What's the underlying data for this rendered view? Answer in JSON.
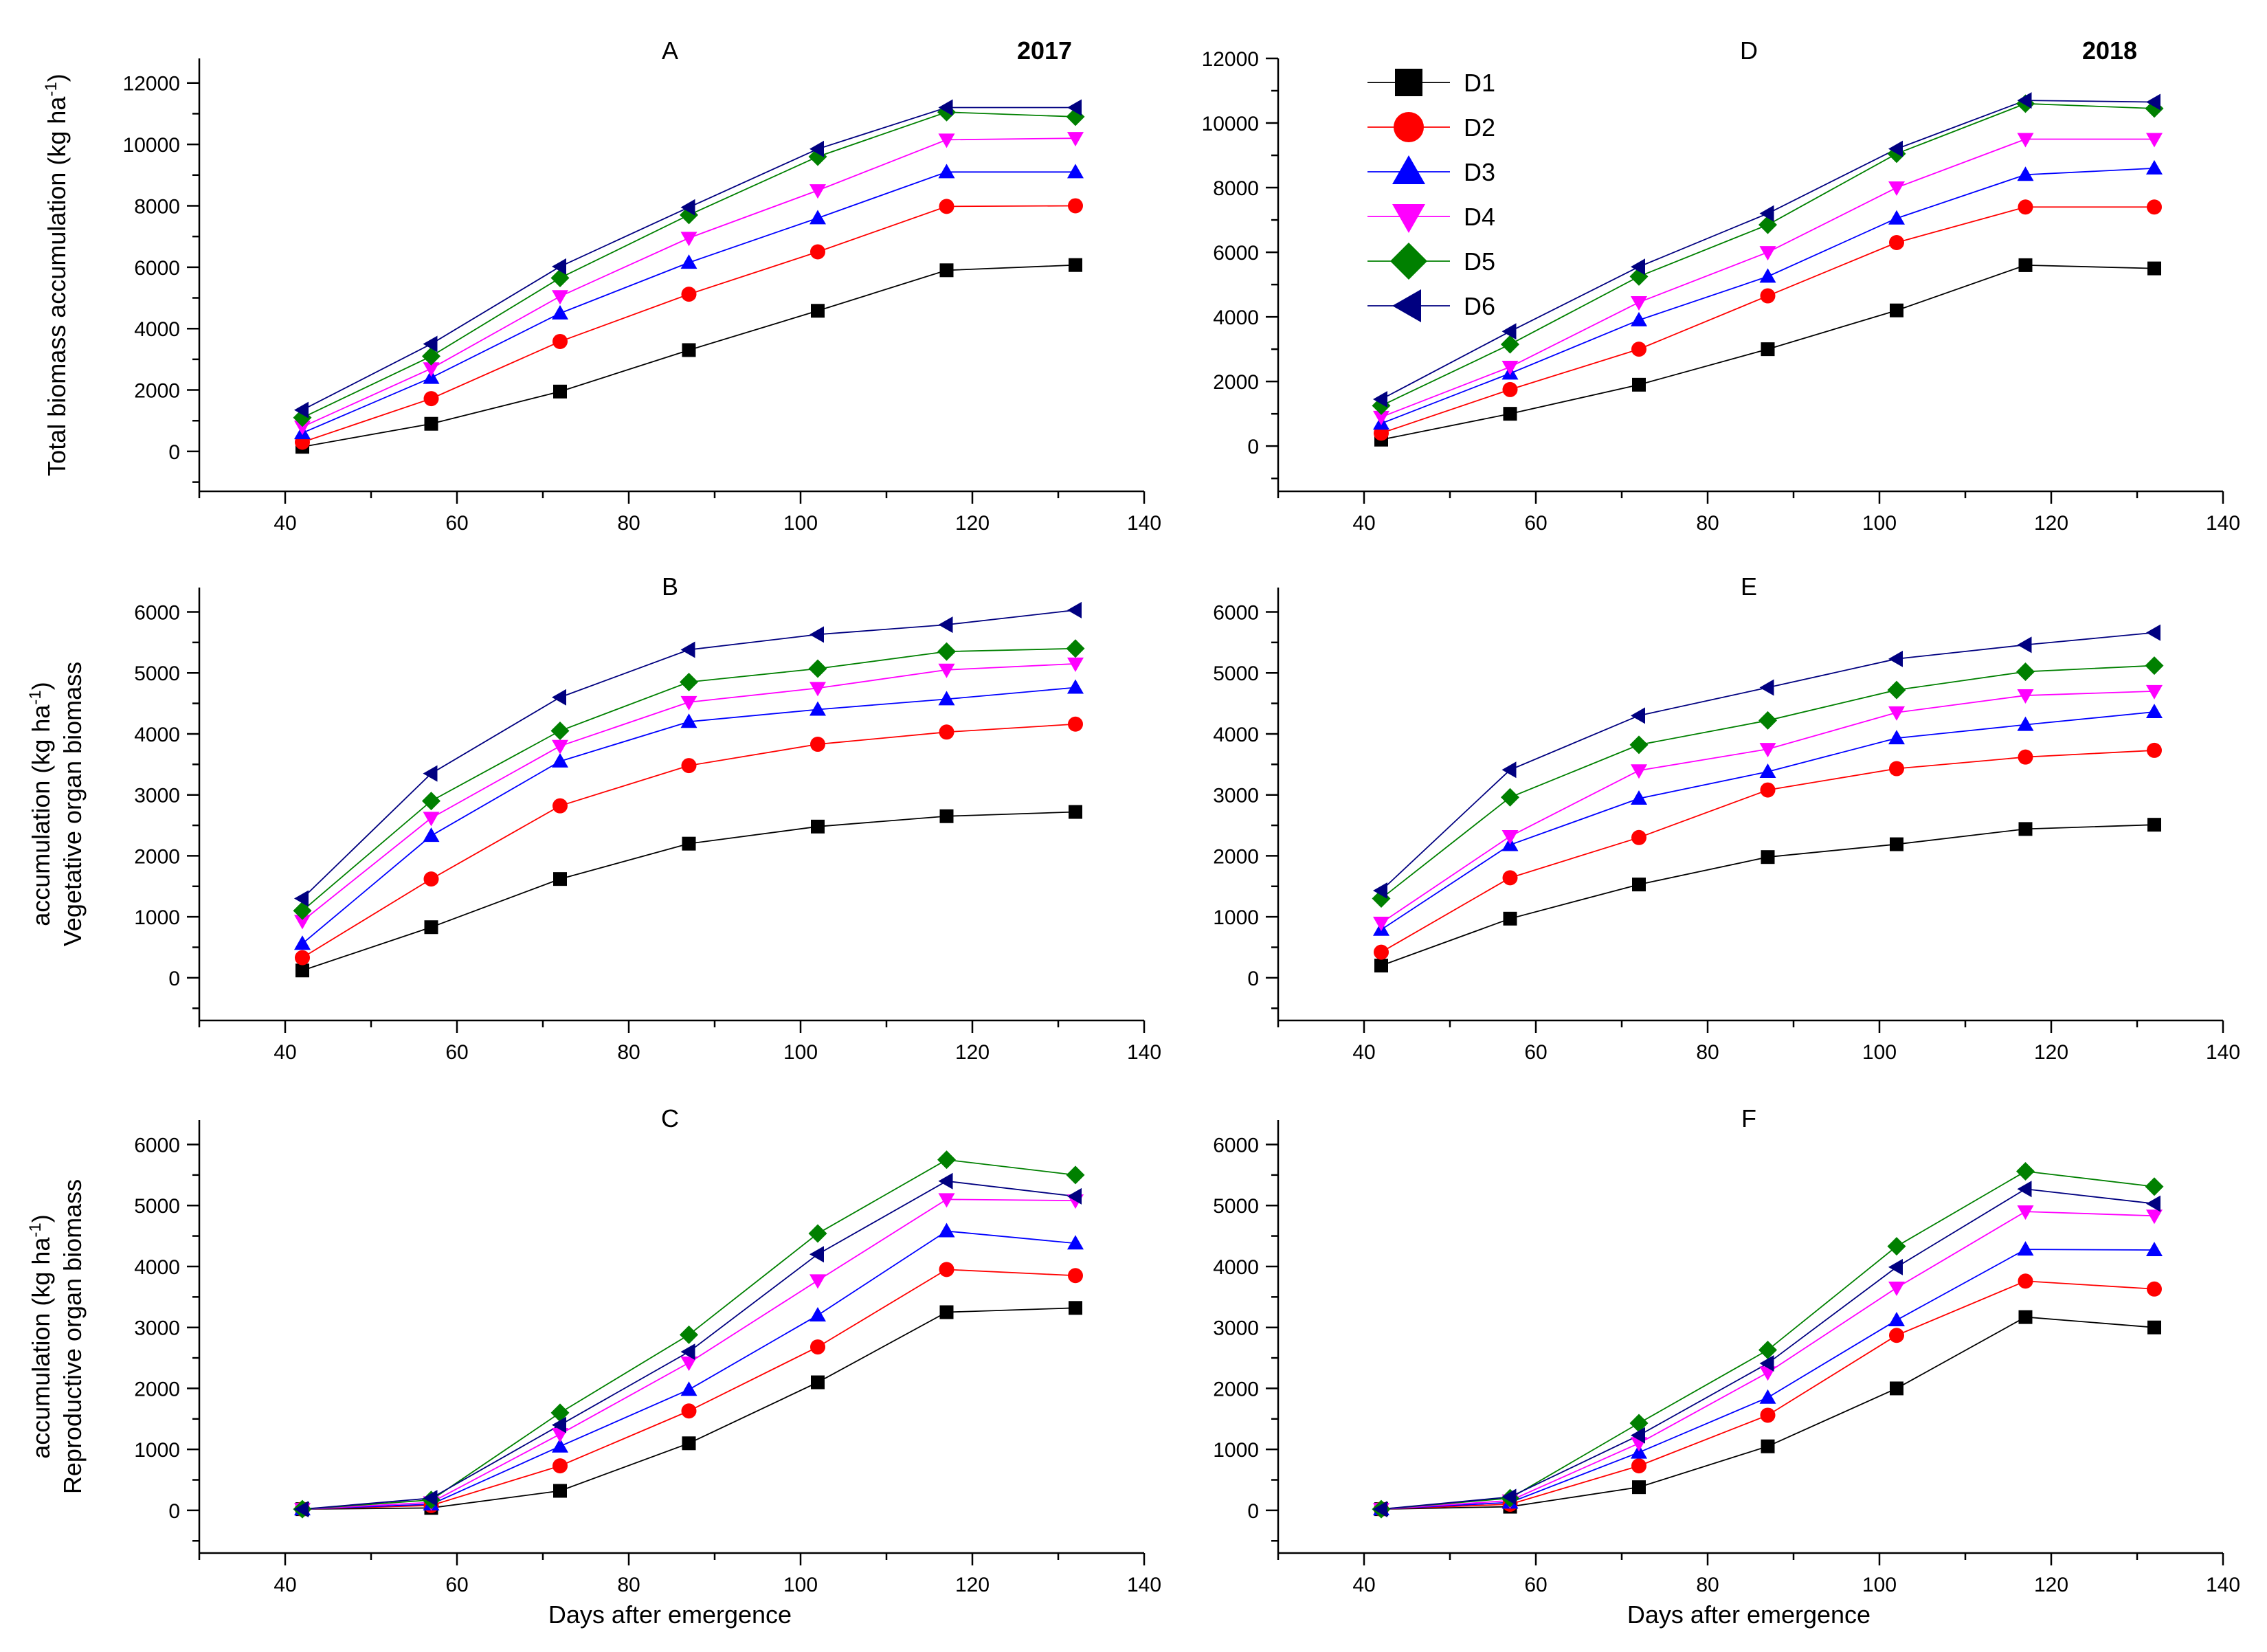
{
  "series_meta": [
    {
      "name": "D1",
      "color": "#000000",
      "marker": "square"
    },
    {
      "name": "D2",
      "color": "#ff0000",
      "marker": "circle"
    },
    {
      "name": "D3",
      "color": "#0000ff",
      "marker": "triangle-up"
    },
    {
      "name": "D4",
      "color": "#ff00ff",
      "marker": "triangle-down"
    },
    {
      "name": "D5",
      "color": "#008000",
      "marker": "diamond"
    },
    {
      "name": "D6",
      "color": "#000080",
      "marker": "triangle-left"
    }
  ],
  "shared_xlabel": "Days after emergence",
  "chart_data": [
    {
      "id": "A",
      "type": "line",
      "title": "A",
      "year": "2017",
      "ylabel_lines": [
        "Total biomass accumulation (kg ha"
      ],
      "ylabel_sup": "-1",
      "ylabel_close": ")",
      "x": [
        42,
        57,
        72,
        87,
        102,
        117,
        132
      ],
      "xlim": [
        30,
        140
      ],
      "xticks": [
        40,
        60,
        80,
        100,
        120,
        140
      ],
      "ylim": [
        -1300,
        12800
      ],
      "yticks": [
        0,
        2000,
        4000,
        6000,
        8000,
        10000,
        12000
      ],
      "series": [
        {
          "name": "D1",
          "values": [
            150,
            900,
            1950,
            3300,
            4580,
            5900,
            6070
          ]
        },
        {
          "name": "D2",
          "values": [
            300,
            1720,
            3580,
            5120,
            6500,
            7980,
            8000
          ]
        },
        {
          "name": "D3",
          "values": [
            600,
            2400,
            4500,
            6150,
            7600,
            9100,
            9100
          ]
        },
        {
          "name": "D4",
          "values": [
            800,
            2700,
            5050,
            6950,
            8500,
            10150,
            10200
          ]
        },
        {
          "name": "D5",
          "values": [
            1100,
            3100,
            5650,
            7700,
            9600,
            11050,
            10900
          ]
        },
        {
          "name": "D6",
          "values": [
            1350,
            3500,
            6020,
            7950,
            9850,
            11200,
            11200
          ]
        }
      ]
    },
    {
      "id": "D",
      "type": "line",
      "title": "D",
      "year": "2018",
      "x": [
        42,
        57,
        72,
        87,
        102,
        117,
        132
      ],
      "xlim": [
        30,
        140
      ],
      "xticks": [
        40,
        60,
        80,
        100,
        120,
        140
      ],
      "ylim": [
        -1400,
        12000
      ],
      "yticks": [
        0,
        2000,
        4000,
        6000,
        8000,
        10000,
        12000
      ],
      "series": [
        {
          "name": "D1",
          "values": [
            200,
            1000,
            1900,
            3000,
            4200,
            5600,
            5500
          ]
        },
        {
          "name": "D2",
          "values": [
            400,
            1750,
            3000,
            4650,
            6300,
            7400,
            7400
          ]
        },
        {
          "name": "D3",
          "values": [
            700,
            2250,
            3900,
            5250,
            7050,
            8400,
            8600
          ]
        },
        {
          "name": "D4",
          "values": [
            900,
            2450,
            4450,
            6000,
            8000,
            9500,
            9500
          ]
        },
        {
          "name": "D5",
          "values": [
            1250,
            3150,
            5250,
            6850,
            9050,
            10600,
            10450
          ]
        },
        {
          "name": "D6",
          "values": [
            1450,
            3550,
            5550,
            7200,
            9200,
            10700,
            10650
          ]
        }
      ]
    },
    {
      "id": "B",
      "type": "line",
      "title": "B",
      "ylabel_lines": [
        "Vegetative organ biomass",
        "accumulation (kg ha"
      ],
      "ylabel_sup": "-1",
      "ylabel_close": ")",
      "x": [
        42,
        57,
        72,
        87,
        102,
        117,
        132
      ],
      "xlim": [
        30,
        140
      ],
      "xticks": [
        40,
        60,
        80,
        100,
        120,
        140
      ],
      "ylim": [
        -700,
        6400
      ],
      "yticks": [
        0,
        1000,
        2000,
        3000,
        4000,
        5000,
        6000
      ],
      "series": [
        {
          "name": "D1",
          "values": [
            120,
            830,
            1620,
            2200,
            2480,
            2650,
            2720
          ]
        },
        {
          "name": "D2",
          "values": [
            330,
            1620,
            2820,
            3480,
            3830,
            4030,
            4160
          ]
        },
        {
          "name": "D3",
          "values": [
            560,
            2330,
            3550,
            4200,
            4400,
            4570,
            4760
          ]
        },
        {
          "name": "D4",
          "values": [
            930,
            2620,
            3800,
            4520,
            4750,
            5050,
            5150
          ]
        },
        {
          "name": "D5",
          "values": [
            1100,
            2900,
            4050,
            4850,
            5070,
            5350,
            5400
          ]
        },
        {
          "name": "D6",
          "values": [
            1300,
            3350,
            4600,
            5380,
            5630,
            5790,
            6030
          ]
        }
      ]
    },
    {
      "id": "E",
      "type": "line",
      "title": "E",
      "x": [
        42,
        57,
        72,
        87,
        102,
        117,
        132
      ],
      "xlim": [
        30,
        140
      ],
      "xticks": [
        40,
        60,
        80,
        100,
        120,
        140
      ],
      "ylim": [
        -700,
        6400
      ],
      "yticks": [
        0,
        1000,
        2000,
        3000,
        4000,
        5000,
        6000
      ],
      "series": [
        {
          "name": "D1",
          "values": [
            200,
            970,
            1530,
            1980,
            2190,
            2440,
            2510
          ]
        },
        {
          "name": "D2",
          "values": [
            420,
            1640,
            2300,
            3080,
            3430,
            3620,
            3730
          ]
        },
        {
          "name": "D3",
          "values": [
            790,
            2180,
            2940,
            3380,
            3930,
            4150,
            4360
          ]
        },
        {
          "name": "D4",
          "values": [
            900,
            2320,
            3400,
            3750,
            4350,
            4630,
            4700
          ]
        },
        {
          "name": "D5",
          "values": [
            1300,
            2960,
            3820,
            4220,
            4720,
            5020,
            5120
          ]
        },
        {
          "name": "D6",
          "values": [
            1430,
            3410,
            4300,
            4760,
            5230,
            5460,
            5660
          ]
        }
      ]
    },
    {
      "id": "C",
      "type": "line",
      "title": "C",
      "ylabel_lines": [
        "Reproductive organ biomass",
        "accumulation (kg ha"
      ],
      "ylabel_sup": "-1",
      "ylabel_close": ")",
      "x": [
        42,
        57,
        72,
        87,
        102,
        117,
        132
      ],
      "xlim": [
        30,
        140
      ],
      "xticks": [
        40,
        60,
        80,
        100,
        120,
        140
      ],
      "ylim": [
        -700,
        6400
      ],
      "yticks": [
        0,
        1000,
        2000,
        3000,
        4000,
        5000,
        6000
      ],
      "series": [
        {
          "name": "D1",
          "values": [
            20,
            40,
            320,
            1100,
            2100,
            3250,
            3320
          ]
        },
        {
          "name": "D2",
          "values": [
            20,
            80,
            730,
            1630,
            2680,
            3950,
            3850
          ]
        },
        {
          "name": "D3",
          "values": [
            20,
            100,
            1050,
            1980,
            3200,
            4580,
            4380
          ]
        },
        {
          "name": "D4",
          "values": [
            20,
            130,
            1250,
            2420,
            3770,
            5100,
            5080
          ]
        },
        {
          "name": "D5",
          "values": [
            20,
            170,
            1600,
            2880,
            4540,
            5750,
            5500
          ]
        },
        {
          "name": "D6",
          "values": [
            20,
            200,
            1400,
            2600,
            4200,
            5400,
            5150
          ]
        }
      ]
    },
    {
      "id": "F",
      "type": "line",
      "title": "F",
      "x": [
        42,
        57,
        72,
        87,
        102,
        117,
        132
      ],
      "xlim": [
        30,
        140
      ],
      "xticks": [
        40,
        60,
        80,
        100,
        120,
        140
      ],
      "ylim": [
        -700,
        6400
      ],
      "yticks": [
        0,
        1000,
        2000,
        3000,
        4000,
        5000,
        6000
      ],
      "series": [
        {
          "name": "D1",
          "values": [
            20,
            60,
            380,
            1050,
            2000,
            3170,
            3000
          ]
        },
        {
          "name": "D2",
          "values": [
            20,
            100,
            730,
            1560,
            2870,
            3760,
            3630
          ]
        },
        {
          "name": "D3",
          "values": [
            20,
            130,
            950,
            1850,
            3120,
            4280,
            4270
          ]
        },
        {
          "name": "D4",
          "values": [
            20,
            160,
            1100,
            2260,
            3650,
            4900,
            4830
          ]
        },
        {
          "name": "D5",
          "values": [
            20,
            200,
            1430,
            2630,
            4330,
            5560,
            5310
          ]
        },
        {
          "name": "D6",
          "values": [
            20,
            220,
            1230,
            2410,
            3990,
            5270,
            5030
          ]
        }
      ]
    }
  ]
}
